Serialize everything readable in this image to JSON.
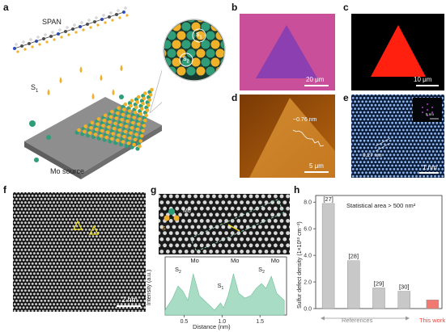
{
  "labels": {
    "a": "a",
    "b": "b",
    "c": "c",
    "d": "d",
    "e": "e",
    "f": "f",
    "g": "g",
    "h": "h"
  },
  "panel_a": {
    "span_label": "SPAN",
    "s1_label": "S",
    "s1_sub": "1",
    "mo_source_label": "Mo source",
    "zoom_s1": "S",
    "zoom_s1_sub": "1",
    "zoom_s2": "S",
    "zoom_s2_sub": "2"
  },
  "panel_b": {
    "scale": "20 μm",
    "bg_color": "#c94f9a",
    "tri_color": "#8b3fb0"
  },
  "panel_c": {
    "scale": "10 μm",
    "tri_color": "#ff2010"
  },
  "panel_d": {
    "scale": "5 μm",
    "height": "~0.76 nm"
  },
  "panel_e": {
    "scale": "1 nm",
    "d_spacing": "0.27 nm",
    "inset_scale": "5 nm"
  },
  "panel_f": {
    "scale": "2 nm"
  },
  "panel_g": {
    "img_s": "S",
    "img_mo": "Mo",
    "plot_ylabel": "Intensity (a.u.)",
    "plot_xlabel": "Distance (nm)",
    "xticks": [
      "0.5",
      "1.0",
      "1.5"
    ],
    "peak_labels": [
      {
        "main": "S",
        "sub": "2"
      },
      {
        "main": "Mo",
        "sub": ""
      },
      {
        "main": "S",
        "sub": "1"
      },
      {
        "main": "Mo",
        "sub": ""
      },
      {
        "main": "Mo",
        "sub": ""
      },
      {
        "main": "S",
        "sub": "2"
      },
      {
        "main": "Mo",
        "sub": ""
      }
    ],
    "fill_color": "#a8dcc4"
  },
  "chart_data": {
    "type": "bar",
    "title": "",
    "annotation": "Statistical area > 500 nm²",
    "ylabel": "Sulfur defect density (1×10¹³ cm⁻²)",
    "xlabel": "",
    "ylim": [
      0,
      8.5
    ],
    "yticks": [
      "0.0",
      "2.0",
      "4.0",
      "6.0",
      "8.0"
    ],
    "categories": [
      "[27]",
      "[28]",
      "[29]",
      "[30]",
      "This work"
    ],
    "values": [
      7.9,
      3.6,
      1.55,
      1.3,
      0.65
    ],
    "bar_colors": [
      "#c8c8c8",
      "#c8c8c8",
      "#c8c8c8",
      "#c8c8c8",
      "#f07a72"
    ],
    "group_label": "References",
    "this_work_label": "This work",
    "this_work_color": "#e8453c"
  }
}
